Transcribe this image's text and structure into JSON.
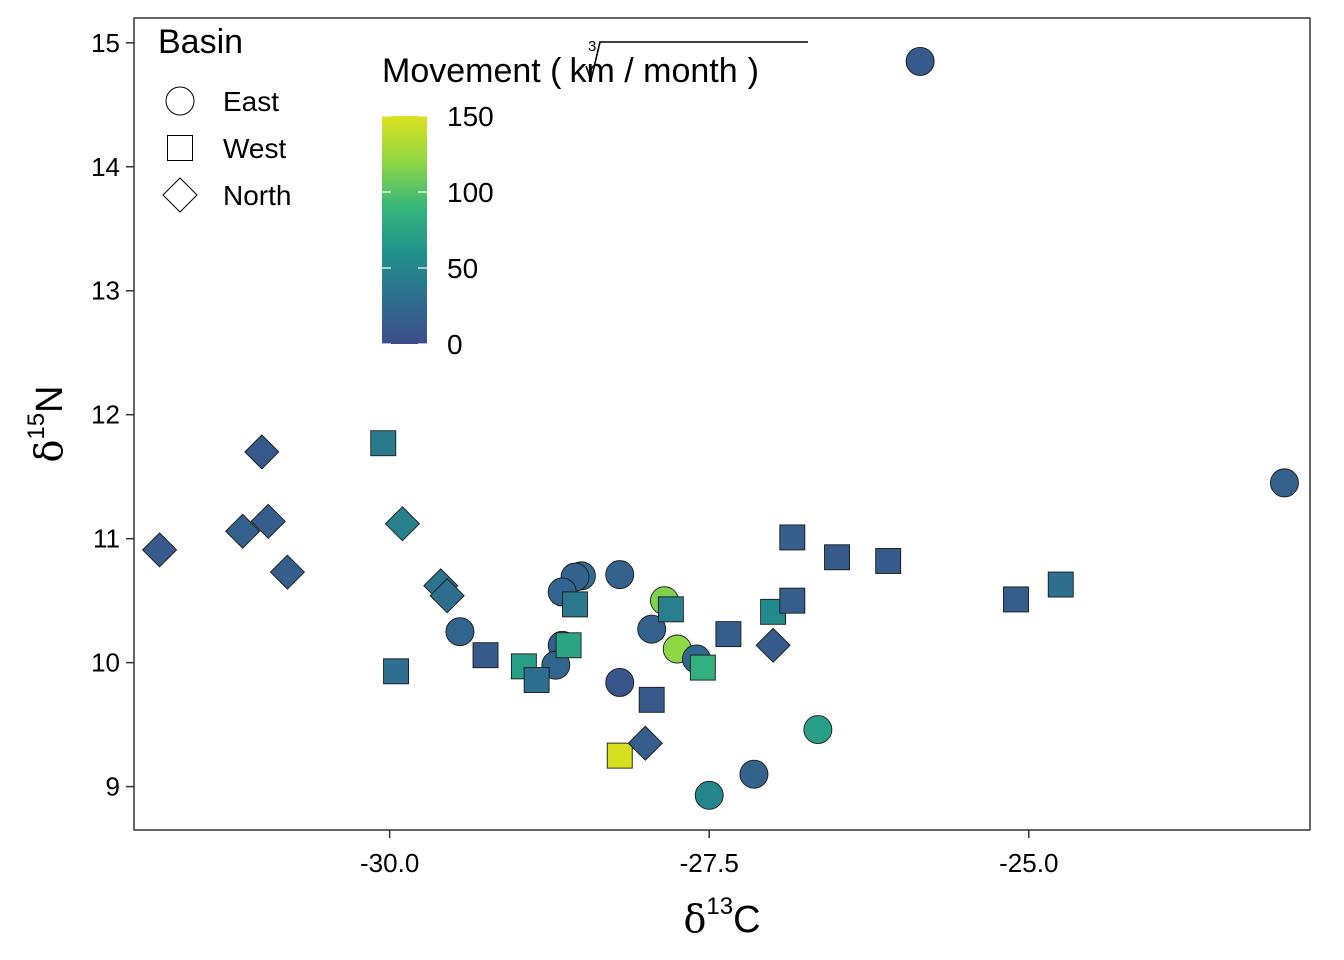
{
  "chart_data": {
    "type": "scatter",
    "title": "",
    "xlabel": {
      "symbol": "δ",
      "sup": "13",
      "text": "C"
    },
    "ylabel": {
      "symbol": "δ",
      "sup": "15",
      "text": "N"
    },
    "xlim": [
      -32.0,
      -22.8
    ],
    "ylim": [
      8.65,
      15.2
    ],
    "x_ticks": [
      -30.0,
      -27.5,
      -25.0
    ],
    "x_tick_labels": [
      "-30.0",
      "-27.5",
      "-25.0"
    ],
    "y_ticks": [
      9,
      10,
      11,
      12,
      13,
      14,
      15
    ],
    "y_tick_labels": [
      "9",
      "10",
      "11",
      "12",
      "13",
      "14",
      "15"
    ],
    "grid": false,
    "shape_legend": {
      "title": "Basin",
      "position": "top-left",
      "entries": [
        {
          "label": "East",
          "shape": "circle"
        },
        {
          "label": "West",
          "shape": "square"
        },
        {
          "label": "North",
          "shape": "diamond"
        }
      ]
    },
    "color_legend": {
      "title_prefix": "Movement (",
      "root_index": "3",
      "root_radicand": "km / month",
      "title_suffix": ")",
      "range": [
        0,
        150
      ],
      "ticks": [
        0,
        50,
        100,
        150
      ],
      "tick_labels": [
        "0",
        "50",
        "100",
        "150"
      ],
      "palette": [
        "#3c4d8a",
        "#2e6e8e",
        "#21918c",
        "#36b77b",
        "#8fd744",
        "#dbe11f"
      ],
      "position": "top-left"
    },
    "series": [
      {
        "name": "East",
        "shape": "circle",
        "points": [
          {
            "x": -25.85,
            "y": 14.85,
            "movement": 12
          },
          {
            "x": -23.0,
            "y": 11.45,
            "movement": 18
          },
          {
            "x": -28.5,
            "y": 10.7,
            "movement": 28
          },
          {
            "x": -28.55,
            "y": 10.69,
            "movement": 20
          },
          {
            "x": -28.65,
            "y": 10.57,
            "movement": 22
          },
          {
            "x": -28.2,
            "y": 10.71,
            "movement": 20
          },
          {
            "x": -29.45,
            "y": 10.25,
            "movement": 22
          },
          {
            "x": -28.65,
            "y": 10.14,
            "movement": 18
          },
          {
            "x": -28.7,
            "y": 9.98,
            "movement": 22
          },
          {
            "x": -27.95,
            "y": 10.27,
            "movement": 20
          },
          {
            "x": -27.85,
            "y": 10.5,
            "movement": 115
          },
          {
            "x": -27.75,
            "y": 10.11,
            "movement": 120
          },
          {
            "x": -27.6,
            "y": 10.03,
            "movement": 25
          },
          {
            "x": -28.2,
            "y": 9.84,
            "movement": 8
          },
          {
            "x": -26.65,
            "y": 9.46,
            "movement": 70
          },
          {
            "x": -27.15,
            "y": 9.1,
            "movement": 20
          },
          {
            "x": -27.5,
            "y": 8.93,
            "movement": 50
          }
        ]
      },
      {
        "name": "West",
        "shape": "square",
        "points": [
          {
            "x": -30.05,
            "y": 11.77,
            "movement": 40
          },
          {
            "x": -29.95,
            "y": 9.93,
            "movement": 30
          },
          {
            "x": -29.25,
            "y": 10.06,
            "movement": 12
          },
          {
            "x": -28.95,
            "y": 9.97,
            "movement": 70
          },
          {
            "x": -28.85,
            "y": 9.86,
            "movement": 30
          },
          {
            "x": -28.6,
            "y": 10.14,
            "movement": 75
          },
          {
            "x": -28.55,
            "y": 10.47,
            "movement": 38
          },
          {
            "x": -28.2,
            "y": 9.25,
            "movement": 148
          },
          {
            "x": -27.95,
            "y": 9.7,
            "movement": 10
          },
          {
            "x": -27.8,
            "y": 10.43,
            "movement": 45
          },
          {
            "x": -27.55,
            "y": 9.96,
            "movement": 85
          },
          {
            "x": -27.35,
            "y": 10.23,
            "movement": 15
          },
          {
            "x": -27.0,
            "y": 10.41,
            "movement": 55
          },
          {
            "x": -26.85,
            "y": 10.5,
            "movement": 15
          },
          {
            "x": -26.85,
            "y": 11.01,
            "movement": 15
          },
          {
            "x": -26.5,
            "y": 10.85,
            "movement": 12
          },
          {
            "x": -26.1,
            "y": 10.82,
            "movement": 12
          },
          {
            "x": -25.1,
            "y": 10.51,
            "movement": 15
          },
          {
            "x": -24.75,
            "y": 10.63,
            "movement": 30
          }
        ]
      },
      {
        "name": "North",
        "shape": "diamond",
        "points": [
          {
            "x": -31.8,
            "y": 10.91,
            "movement": 12
          },
          {
            "x": -31.15,
            "y": 11.06,
            "movement": 18
          },
          {
            "x": -31.0,
            "y": 11.7,
            "movement": 10
          },
          {
            "x": -30.95,
            "y": 11.14,
            "movement": 15
          },
          {
            "x": -30.8,
            "y": 10.73,
            "movement": 15
          },
          {
            "x": -29.9,
            "y": 11.12,
            "movement": 45
          },
          {
            "x": -29.6,
            "y": 10.62,
            "movement": 35
          },
          {
            "x": -29.55,
            "y": 10.54,
            "movement": 30
          },
          {
            "x": -28.0,
            "y": 9.35,
            "movement": 15
          },
          {
            "x": -27.0,
            "y": 10.14,
            "movement": 12
          }
        ]
      }
    ]
  }
}
